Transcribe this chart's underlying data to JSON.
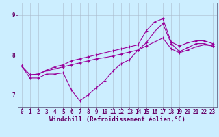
{
  "xlabel": "Windchill (Refroidissement éolien,°C)",
  "background_color": "#cceeff",
  "line_color": "#990099",
  "grid_color": "#aabbcc",
  "axis_color": "#666688",
  "tick_label_color": "#660066",
  "xlim": [
    -0.5,
    23.5
  ],
  "ylim": [
    6.7,
    9.3
  ],
  "yticks": [
    7,
    8,
    9
  ],
  "xticks": [
    0,
    1,
    2,
    3,
    4,
    5,
    6,
    7,
    8,
    9,
    10,
    11,
    12,
    13,
    14,
    15,
    16,
    17,
    18,
    19,
    20,
    21,
    22,
    23
  ],
  "line1_x": [
    0,
    1,
    2,
    3,
    4,
    5,
    6,
    7,
    8,
    9,
    10,
    11,
    12,
    13,
    14,
    15,
    16,
    17,
    18,
    19,
    20,
    21,
    22,
    23
  ],
  "line1_y": [
    7.72,
    7.42,
    7.42,
    7.52,
    7.52,
    7.55,
    7.12,
    6.85,
    7.0,
    7.18,
    7.35,
    7.6,
    7.78,
    7.88,
    8.12,
    8.3,
    8.58,
    8.78,
    8.28,
    8.08,
    8.18,
    8.28,
    8.28,
    8.22
  ],
  "line2_x": [
    0,
    1,
    2,
    3,
    4,
    5,
    6,
    7,
    8,
    9,
    10,
    11,
    12,
    13,
    14,
    15,
    16,
    17,
    18,
    19,
    20,
    21,
    22,
    23
  ],
  "line2_y": [
    7.72,
    7.5,
    7.52,
    7.6,
    7.65,
    7.7,
    7.75,
    7.8,
    7.85,
    7.9,
    7.93,
    7.97,
    8.02,
    8.07,
    8.12,
    8.22,
    8.32,
    8.42,
    8.15,
    8.05,
    8.12,
    8.2,
    8.25,
    8.22
  ],
  "line3_x": [
    0,
    1,
    2,
    3,
    4,
    5,
    6,
    7,
    8,
    9,
    10,
    11,
    12,
    13,
    14,
    15,
    16,
    17,
    18,
    19,
    20,
    21,
    22,
    23
  ],
  "line3_y": [
    7.72,
    7.5,
    7.52,
    7.62,
    7.7,
    7.75,
    7.85,
    7.9,
    7.95,
    8.0,
    8.05,
    8.1,
    8.15,
    8.2,
    8.25,
    8.6,
    8.82,
    8.9,
    8.32,
    8.22,
    8.3,
    8.35,
    8.35,
    8.28
  ],
  "marker_size": 3,
  "line_width": 0.8,
  "font_size": 6.5,
  "tick_font_size": 5.5
}
